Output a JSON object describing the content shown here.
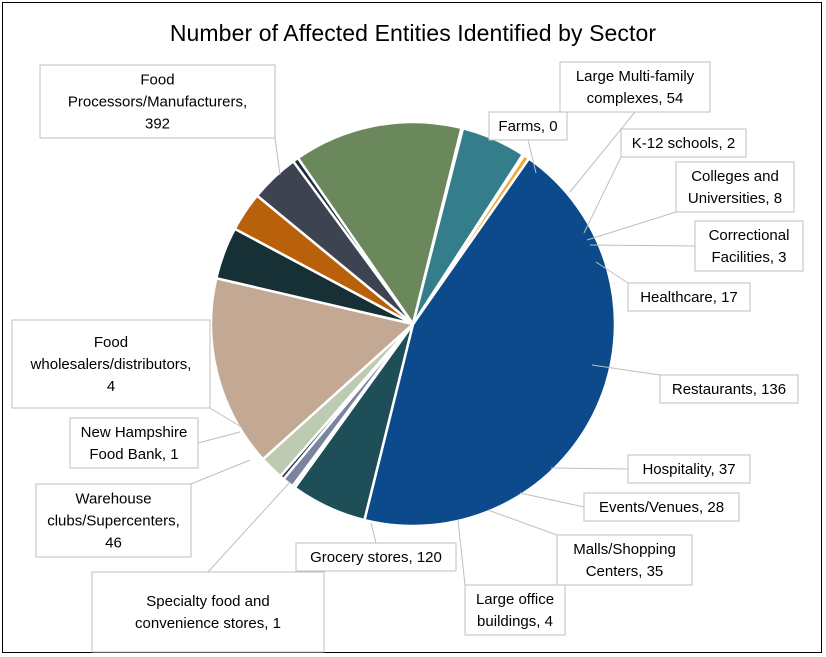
{
  "chart_data": {
    "type": "pie",
    "title": "Number of Affected Entities Identified by Sector",
    "slices": [
      {
        "label": "Food Processors/Manufacturers",
        "value": 392,
        "color": "#0d4a8c",
        "label_lines": [
          "Food",
          "Processors/Manufacturers,",
          "392"
        ]
      },
      {
        "label": "Large Multi-family complexes",
        "value": 54,
        "color": "#1e4e57",
        "label_lines": [
          "Large Multi-family",
          "complexes, 54"
        ]
      },
      {
        "label": "Farms",
        "value": 0,
        "color": "#1e4e57",
        "label_lines": [
          "Farms, 0"
        ]
      },
      {
        "label": "K-12 schools",
        "value": 2,
        "color": "#c7cfd6",
        "label_lines": [
          "K-12 schools, 2"
        ]
      },
      {
        "label": "Colleges and Universities",
        "value": 8,
        "color": "#7a849e",
        "label_lines": [
          "Colleges and",
          "Universities, 8"
        ]
      },
      {
        "label": "Correctional Facilities",
        "value": 3,
        "color": "#1d3557",
        "label_lines": [
          "Correctional",
          "Facilities, 3"
        ]
      },
      {
        "label": "Healthcare",
        "value": 17,
        "color": "#bccbb2",
        "label_lines": [
          "Healthcare, 17"
        ]
      },
      {
        "label": "Restaurants",
        "value": 136,
        "color": "#c3a894",
        "label_lines": [
          "Restaurants, 136"
        ]
      },
      {
        "label": "Hospitality",
        "value": 37,
        "color": "#163036",
        "label_lines": [
          "Hospitality, 37"
        ]
      },
      {
        "label": "Events/Venues",
        "value": 28,
        "color": "#b9610a",
        "label_lines": [
          "Events/Venues, 28"
        ]
      },
      {
        "label": "Malls/Shopping Centers",
        "value": 35,
        "color": "#3e4352",
        "label_lines": [
          "Malls/Shopping",
          "Centers, 35"
        ]
      },
      {
        "label": "Large office buildings",
        "value": 4,
        "color": "#1f2d40",
        "label_lines": [
          "Large office",
          "buildings, 4"
        ]
      },
      {
        "label": "Grocery stores",
        "value": 120,
        "color": "#6b875c",
        "label_lines": [
          "Grocery stores, 120"
        ]
      },
      {
        "label": "Specialty food and convenience stores",
        "value": 1,
        "color": "#6b875c",
        "label_lines": [
          "Specialty food  and",
          "convenience stores, 1"
        ]
      },
      {
        "label": "Warehouse clubs/Supercenters",
        "value": 46,
        "color": "#347e8c",
        "label_lines": [
          "Warehouse",
          "clubs/Supercenters,",
          "46"
        ]
      },
      {
        "label": "New Hampshire Food Bank",
        "value": 1,
        "color": "#c9d8e8",
        "label_lines": [
          "New Hampshire",
          "Food Bank, 1"
        ]
      },
      {
        "label": "Food wholesalers/distributors",
        "value": 4,
        "color": "#f2a93b",
        "label_lines": [
          "Food",
          "wholesalers/distributors,",
          "4"
        ]
      }
    ]
  }
}
